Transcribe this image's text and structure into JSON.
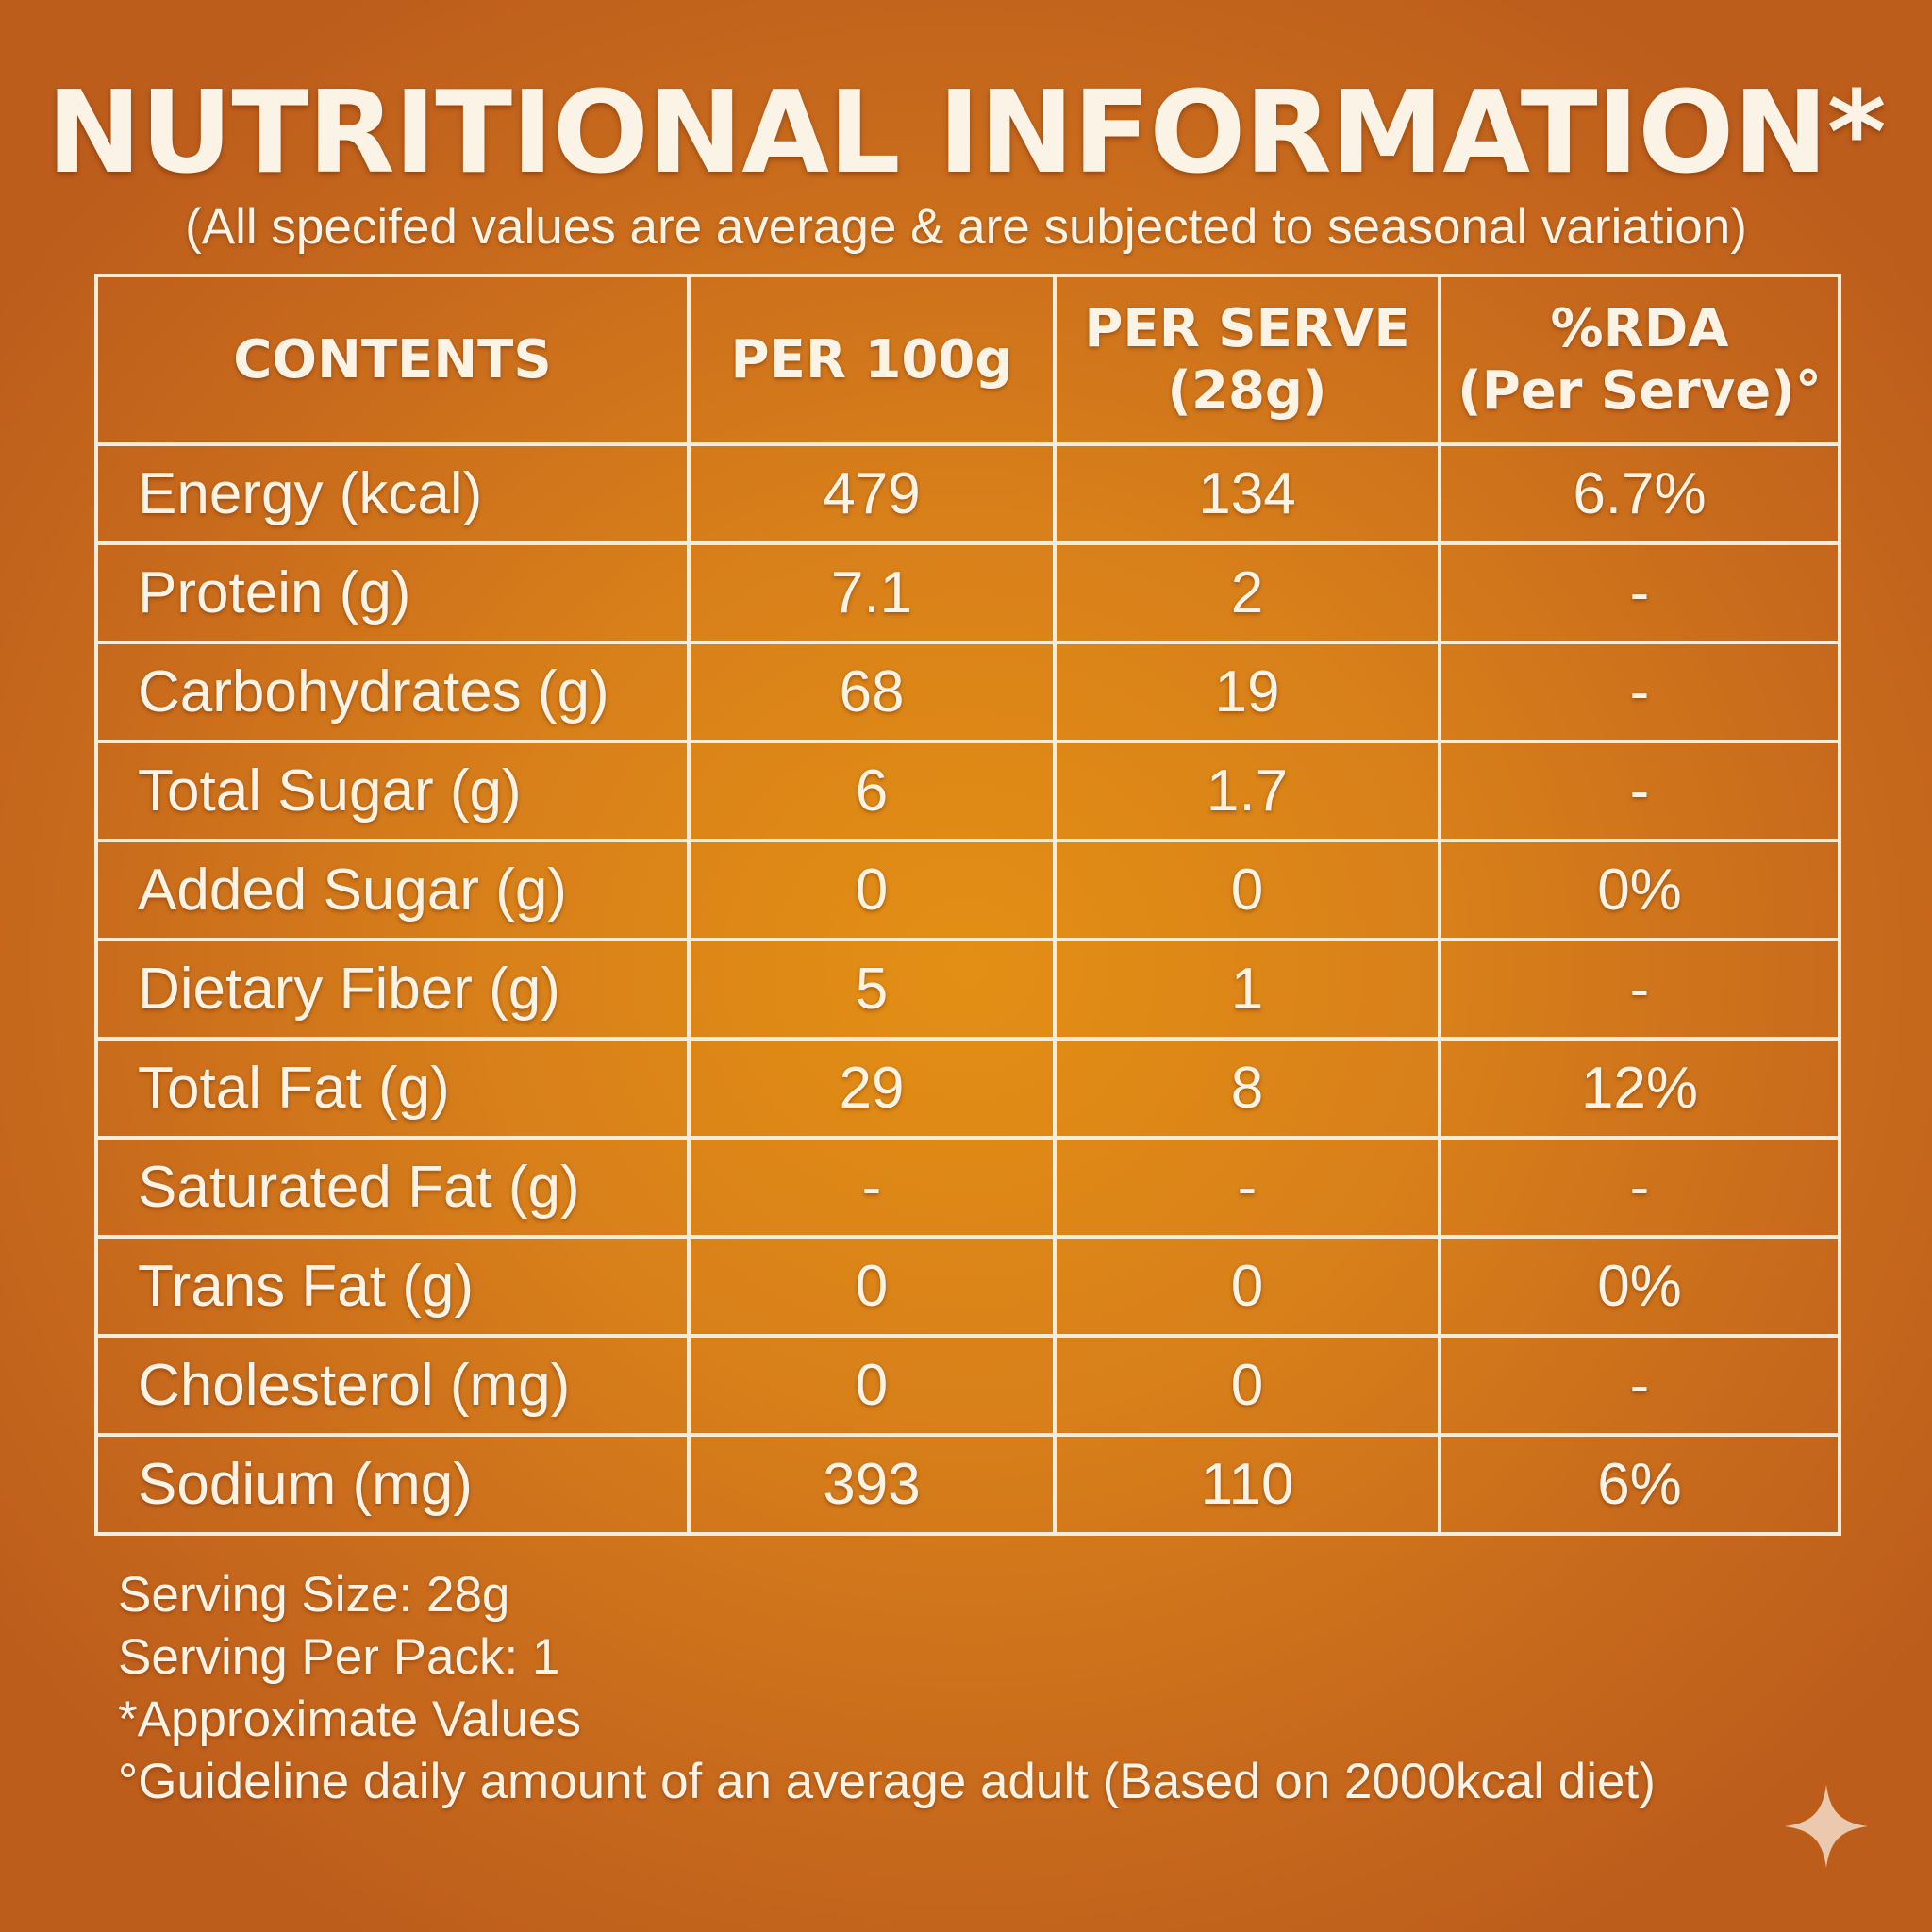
{
  "title": "NUTRITIONAL INFORMATION*",
  "subtitle": "(All specifed values are average & are subjected to seasonal variation)",
  "table": {
    "headers": {
      "contents": "CONTENTS",
      "per_100g": "PER 100g",
      "per_serve_line1": "PER SERVE",
      "per_serve_line2": "(28g)",
      "rda_line1": "%RDA",
      "rda_line2": "(Per Serve)°"
    },
    "rows": [
      {
        "name": "Energy (kcal)",
        "per_100g": "479",
        "per_serve": "134",
        "rda": "6.7%"
      },
      {
        "name": "Protein (g)",
        "per_100g": "7.1",
        "per_serve": "2",
        "rda": "-"
      },
      {
        "name": "Carbohydrates (g)",
        "per_100g": "68",
        "per_serve": "19",
        "rda": "-"
      },
      {
        "name": "Total Sugar (g)",
        "per_100g": "6",
        "per_serve": "1.7",
        "rda": "-"
      },
      {
        "name": "Added Sugar (g)",
        "per_100g": "0",
        "per_serve": "0",
        "rda": "0%"
      },
      {
        "name": "Dietary Fiber (g)",
        "per_100g": "5",
        "per_serve": "1",
        "rda": "-"
      },
      {
        "name": "Total Fat (g)",
        "per_100g": "29",
        "per_serve": "8",
        "rda": "12%"
      },
      {
        "name": "Saturated Fat (g)",
        "per_100g": "-",
        "per_serve": "-",
        "rda": "-"
      },
      {
        "name": "Trans Fat (g)",
        "per_100g": "0",
        "per_serve": "0",
        "rda": "0%"
      },
      {
        "name": "Cholesterol (mg)",
        "per_100g": "0",
        "per_serve": "0",
        "rda": "-"
      },
      {
        "name": "Sodium (mg)",
        "per_100g": "393",
        "per_serve": "110",
        "rda": "6%"
      }
    ]
  },
  "footer": {
    "serving_size": "Serving Size: 28g",
    "serving_per_pack": "Serving Per Pack: 1",
    "approx_note": "*Approximate Values",
    "guideline_note": "°Guideline daily amount of an average adult (Based on 2000kcal diet)"
  },
  "colors": {
    "background_center": "#e38f14",
    "background_edge": "#bd5d1c",
    "text": "#fbf3e6",
    "border": "#f6ecdc"
  },
  "icons": {
    "corner": "sparkle-icon"
  }
}
